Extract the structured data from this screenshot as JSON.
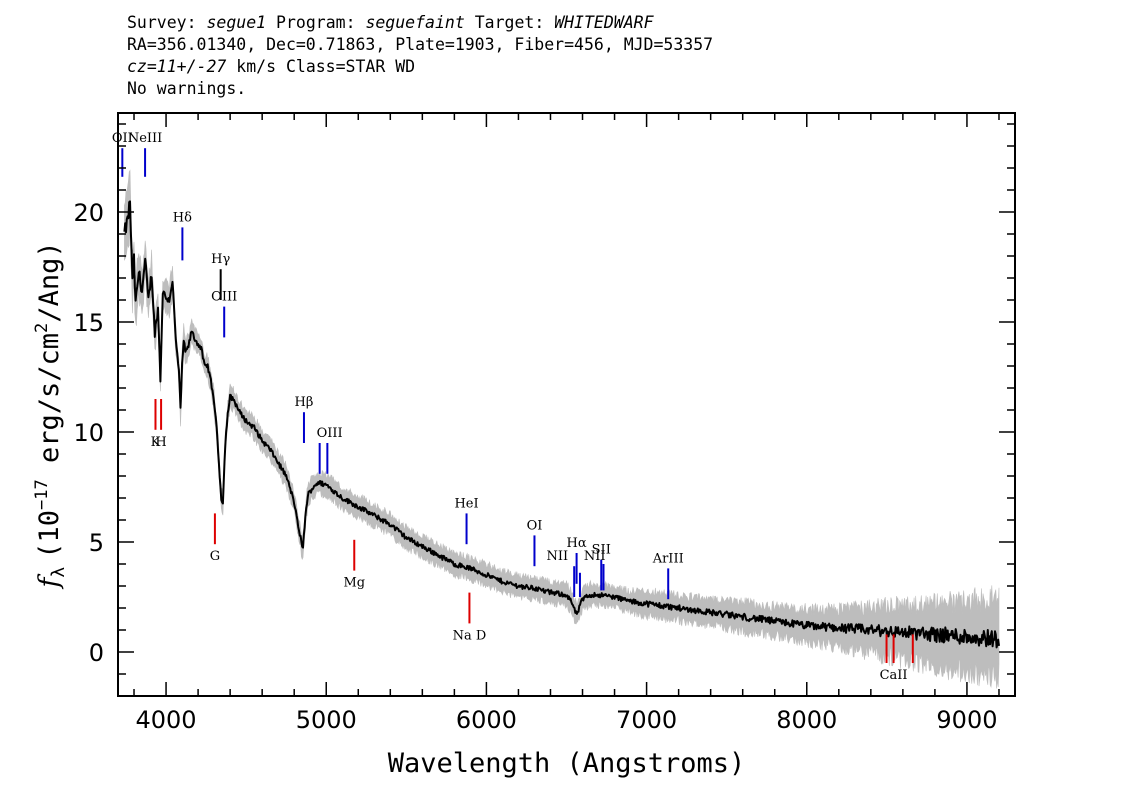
{
  "header": {
    "survey_label": "Survey: ",
    "survey": "segue1",
    "program_label": " Program: ",
    "program": "seguefaint",
    "target_label": " Target: ",
    "target": "WHITEDWARF",
    "coords": "RA=356.01340, Dec=0.71863, Plate=1903, Fiber=456, MJD=53357",
    "redshift": "cz=11+/-27",
    "redshift_unit": " km/s Class=STAR WD",
    "warnings": "No warnings."
  },
  "chart_data": {
    "type": "line",
    "title": "",
    "xlabel": "Wavelength (Angstroms)",
    "ylabel_symbol": "f",
    "ylabel_subscript": "λ",
    "ylabel_units": "(10",
    "ylabel_exponent": "−17",
    "ylabel_rest": " erg/s/cm",
    "ylabel_sq": "2",
    "ylabel_tail": "/Ang)",
    "xlim": [
      3700,
      9300
    ],
    "ylim": [
      -2,
      24.5
    ],
    "xticks": [
      4000,
      5000,
      6000,
      7000,
      8000,
      9000
    ],
    "xtick_labels": [
      "4000",
      "5000",
      "6000",
      "7000",
      "8000",
      "9000"
    ],
    "yticks": [
      0,
      5,
      10,
      15,
      20
    ],
    "ytick_labels": [
      "0",
      "5",
      "10",
      "15",
      "20"
    ],
    "grid": false,
    "colors": {
      "spectrum": "#000000",
      "error_band": "#bdbdbd",
      "emission": "#0000cc",
      "absorption": "#dd0000",
      "neutral": "#000000"
    },
    "spectrum": {
      "x": [
        3740,
        3760,
        3775,
        3790,
        3800,
        3810,
        3830,
        3850,
        3870,
        3890,
        3910,
        3930,
        3950,
        3965,
        3980,
        4000,
        4020,
        4040,
        4060,
        4080,
        4090,
        4100,
        4110,
        4120,
        4140,
        4160,
        4180,
        4200,
        4220,
        4240,
        4260,
        4280,
        4300,
        4320,
        4335,
        4345,
        4355,
        4370,
        4385,
        4400,
        4420,
        4440,
        4460,
        4480,
        4500,
        4550,
        4600,
        4650,
        4700,
        4750,
        4780,
        4800,
        4820,
        4840,
        4852,
        4862,
        4875,
        4890,
        4910,
        4930,
        4950,
        5000,
        5050,
        5100,
        5150,
        5200,
        5300,
        5400,
        5500,
        5600,
        5700,
        5800,
        5900,
        6000,
        6100,
        6200,
        6300,
        6400,
        6500,
        6530,
        6550,
        6563,
        6580,
        6600,
        6650,
        6700,
        6800,
        6900,
        7000,
        7200,
        7400,
        7600,
        7800,
        8000,
        8200,
        8400,
        8600,
        8800,
        9000,
        9200
      ],
      "y": [
        19.0,
        19.6,
        20.5,
        16.8,
        17.8,
        15.8,
        17.3,
        16.4,
        17.8,
        16.0,
        17.2,
        14.5,
        15.6,
        12.4,
        16.4,
        16.1,
        16.0,
        16.9,
        14.2,
        12.8,
        11.0,
        13.0,
        14.2,
        13.6,
        13.9,
        14.6,
        14.2,
        14.0,
        13.8,
        13.0,
        13.0,
        12.3,
        11.4,
        9.8,
        8.0,
        7.0,
        6.8,
        9.5,
        10.8,
        11.6,
        11.5,
        11.2,
        10.9,
        10.7,
        10.5,
        10.2,
        9.6,
        9.2,
        8.6,
        8.0,
        7.3,
        6.8,
        5.9,
        5.2,
        4.6,
        5.4,
        6.6,
        7.2,
        7.4,
        7.6,
        7.7,
        7.6,
        7.3,
        7.0,
        6.8,
        6.6,
        6.2,
        5.8,
        5.2,
        4.8,
        4.4,
        4.0,
        3.8,
        3.5,
        3.2,
        3.0,
        2.9,
        2.7,
        2.6,
        2.3,
        1.9,
        1.7,
        2.0,
        2.4,
        2.6,
        2.6,
        2.5,
        2.3,
        2.2,
        2.0,
        1.8,
        1.6,
        1.4,
        1.2,
        1.1,
        1.0,
        0.9,
        0.8,
        0.7,
        0.6
      ],
      "err": [
        1.5,
        1.5,
        1.5,
        1.3,
        1.3,
        1.2,
        1.1,
        1.0,
        1.0,
        0.9,
        0.9,
        0.8,
        0.8,
        0.8,
        0.7,
        0.7,
        0.7,
        0.7,
        0.6,
        0.6,
        0.6,
        0.6,
        0.6,
        0.6,
        0.5,
        0.5,
        0.5,
        0.5,
        0.5,
        0.5,
        0.5,
        0.5,
        0.5,
        0.5,
        0.5,
        0.5,
        0.5,
        0.5,
        0.5,
        0.5,
        0.5,
        0.5,
        0.5,
        0.5,
        0.5,
        0.5,
        0.5,
        0.5,
        0.5,
        0.5,
        0.5,
        0.5,
        0.5,
        0.5,
        0.5,
        0.5,
        0.5,
        0.5,
        0.5,
        0.5,
        0.5,
        0.5,
        0.5,
        0.5,
        0.5,
        0.5,
        0.5,
        0.5,
        0.5,
        0.5,
        0.5,
        0.5,
        0.5,
        0.5,
        0.5,
        0.5,
        0.5,
        0.5,
        0.5,
        0.5,
        0.5,
        0.5,
        0.5,
        0.5,
        0.5,
        0.5,
        0.5,
        0.5,
        0.6,
        0.6,
        0.6,
        0.7,
        0.7,
        0.8,
        0.9,
        1.1,
        1.3,
        1.5,
        1.7,
        1.9
      ]
    },
    "lines": [
      {
        "label": "OII",
        "wavelength": 3727,
        "y1": 21.6,
        "y2": 22.9,
        "color": "#0000cc",
        "label_pos": "above"
      },
      {
        "label": "NeIII",
        "wavelength": 3869,
        "y1": 21.6,
        "y2": 22.9,
        "color": "#0000cc",
        "label_pos": "above"
      },
      {
        "label": "Hδ",
        "wavelength": 4102,
        "y1": 17.8,
        "y2": 19.3,
        "color": "#0000cc",
        "label_pos": "above"
      },
      {
        "label": "Hγ",
        "wavelength": 4341,
        "y1": 16.0,
        "y2": 17.4,
        "color": "#000000",
        "label_pos": "above"
      },
      {
        "label": "OIII",
        "wavelength": 4363,
        "y1": 14.3,
        "y2": 15.7,
        "color": "#0000cc",
        "label_pos": "above"
      },
      {
        "label": "Hβ",
        "wavelength": 4861,
        "y1": 9.5,
        "y2": 10.9,
        "color": "#0000cc",
        "label_pos": "above"
      },
      {
        "label": "OIII",
        "wavelength": 4959,
        "y1": 8.1,
        "y2": 9.5,
        "color": "#0000cc",
        "label_pos": "above_pair"
      },
      {
        "label": "",
        "wavelength": 5007,
        "y1": 8.1,
        "y2": 9.5,
        "color": "#0000cc",
        "label_pos": "none"
      },
      {
        "label": "HeI",
        "wavelength": 5876,
        "y1": 4.9,
        "y2": 6.3,
        "color": "#0000cc",
        "label_pos": "above"
      },
      {
        "label": "OI",
        "wavelength": 6300,
        "y1": 3.9,
        "y2": 5.3,
        "color": "#0000cc",
        "label_pos": "above"
      },
      {
        "label": "NII",
        "wavelength": 6548,
        "y1": 2.5,
        "y2": 3.9,
        "color": "#0000cc",
        "label_pos": "left_above"
      },
      {
        "label": "Hα",
        "wavelength": 6563,
        "y1": 3.1,
        "y2": 4.5,
        "color": "#0000cc",
        "label_pos": "above"
      },
      {
        "label": "",
        "wavelength": 6584,
        "y1": 2.5,
        "y2": 3.6,
        "color": "#0000cc",
        "label_pos": "none"
      },
      {
        "label": "SII",
        "wavelength": 6717,
        "y1": 2.8,
        "y2": 4.2,
        "color": "#0000cc",
        "label_pos": "above"
      },
      {
        "label": "NII",
        "wavelength": 6731,
        "y1": 2.8,
        "y2": 4.0,
        "color": "#0000cc",
        "label_pos": "left_above_small"
      },
      {
        "label": "ArIII",
        "wavelength": 7135,
        "y1": 2.4,
        "y2": 3.8,
        "color": "#0000cc",
        "label_pos": "above"
      },
      {
        "label": "K",
        "wavelength": 3934,
        "y1": 10.1,
        "y2": 11.5,
        "color": "#dd0000",
        "label_pos": "below"
      },
      {
        "label": "H",
        "wavelength": 3969,
        "y1": 10.1,
        "y2": 11.5,
        "color": "#dd0000",
        "label_pos": "below"
      },
      {
        "label": "G",
        "wavelength": 4305,
        "y1": 4.9,
        "y2": 6.3,
        "color": "#dd0000",
        "label_pos": "below"
      },
      {
        "label": "Mg",
        "wavelength": 5175,
        "y1": 3.7,
        "y2": 5.1,
        "color": "#dd0000",
        "label_pos": "below"
      },
      {
        "label": "Na D",
        "wavelength": 5894,
        "y1": 1.3,
        "y2": 2.7,
        "color": "#dd0000",
        "label_pos": "below"
      },
      {
        "label": "",
        "wavelength": 8498,
        "y1": -0.5,
        "y2": 0.8,
        "color": "#dd0000",
        "label_pos": "none"
      },
      {
        "label": "CaII",
        "wavelength": 8542,
        "y1": -0.5,
        "y2": 0.8,
        "color": "#dd0000",
        "label_pos": "below"
      },
      {
        "label": "",
        "wavelength": 8662,
        "y1": -0.5,
        "y2": 0.8,
        "color": "#dd0000",
        "label_pos": "none"
      }
    ]
  }
}
